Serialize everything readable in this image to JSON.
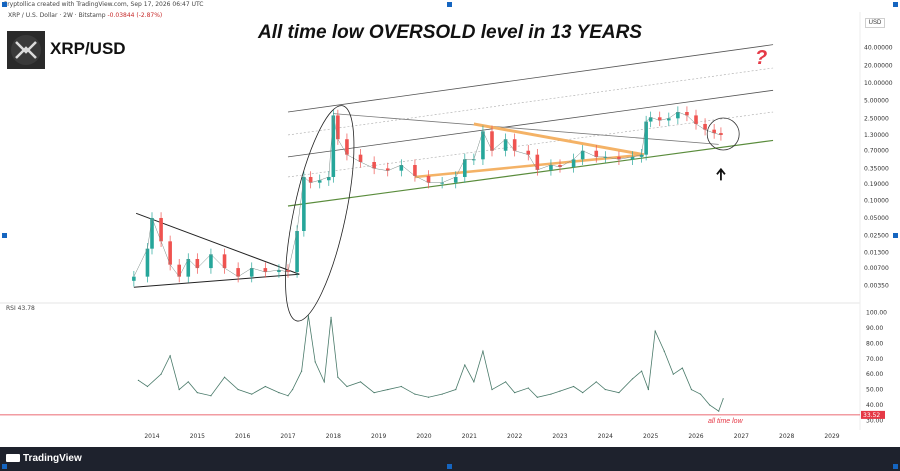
{
  "header_text": "Cryptollica created with TradingView.com, Sep 17, 2026 06:47 UTC",
  "legend": {
    "symbol": "XRP / U.S. Dollar · 2W · Bitstamp",
    "change": "-0.03844 (-2.87%)"
  },
  "pair_label": "XRP/USD",
  "headline": "All time low OVERSOLD level in 13 YEARS",
  "question_mark": "?",
  "currency": "USD",
  "footer_brand": "TradingView",
  "colors": {
    "candle_up": "#26a69a",
    "candle_down": "#ef5350",
    "trend_orange": "#f4b266",
    "support_green": "#5a8c3c",
    "rsi_line": "#4a7a6a",
    "oversold_line": "#e53946",
    "annotation_red": "#e53946",
    "background": "#ffffff",
    "frame": "#1e222d"
  },
  "chart_data": [
    {
      "type": "candlestick",
      "title": "All time low OVERSOLD level in 13 YEARS",
      "y_scale": "log",
      "ylim": [
        0.002,
        80
      ],
      "y_ticks": [
        "40.00000",
        "20.00000",
        "10.00000",
        "5.00000",
        "2.50000",
        "1.30000",
        "0.70000",
        "0.35000",
        "0.19000",
        "0.10000",
        "0.05000",
        "0.02500",
        "0.01300",
        "0.00700",
        "0.00350"
      ],
      "x_ticks": [
        "2014",
        "2015",
        "2016",
        "2017",
        "2018",
        "2019",
        "2020",
        "2021",
        "2022",
        "2023",
        "2024",
        "2025",
        "2026",
        "2027",
        "2028",
        "2029"
      ],
      "price_path": [
        {
          "x": 2013.6,
          "y": 0.005
        },
        {
          "x": 2013.9,
          "y": 0.015
        },
        {
          "x": 2014.0,
          "y": 0.05
        },
        {
          "x": 2014.2,
          "y": 0.02
        },
        {
          "x": 2014.4,
          "y": 0.008
        },
        {
          "x": 2014.6,
          "y": 0.005
        },
        {
          "x": 2014.8,
          "y": 0.01
        },
        {
          "x": 2015.0,
          "y": 0.007
        },
        {
          "x": 2015.3,
          "y": 0.012
        },
        {
          "x": 2015.6,
          "y": 0.007
        },
        {
          "x": 2015.9,
          "y": 0.005
        },
        {
          "x": 2016.2,
          "y": 0.007
        },
        {
          "x": 2016.5,
          "y": 0.006
        },
        {
          "x": 2016.8,
          "y": 0.0065
        },
        {
          "x": 2017.0,
          "y": 0.006
        },
        {
          "x": 2017.2,
          "y": 0.03
        },
        {
          "x": 2017.35,
          "y": 0.25
        },
        {
          "x": 2017.5,
          "y": 0.2
        },
        {
          "x": 2017.7,
          "y": 0.22
        },
        {
          "x": 2017.9,
          "y": 0.25
        },
        {
          "x": 2018.0,
          "y": 2.8
        },
        {
          "x": 2018.1,
          "y": 1.1
        },
        {
          "x": 2018.3,
          "y": 0.6
        },
        {
          "x": 2018.6,
          "y": 0.45
        },
        {
          "x": 2018.9,
          "y": 0.35
        },
        {
          "x": 2019.2,
          "y": 0.32
        },
        {
          "x": 2019.5,
          "y": 0.4
        },
        {
          "x": 2019.8,
          "y": 0.26
        },
        {
          "x": 2020.1,
          "y": 0.2
        },
        {
          "x": 2020.4,
          "y": 0.2
        },
        {
          "x": 2020.7,
          "y": 0.25
        },
        {
          "x": 2020.9,
          "y": 0.5
        },
        {
          "x": 2021.1,
          "y": 0.5
        },
        {
          "x": 2021.3,
          "y": 1.5
        },
        {
          "x": 2021.5,
          "y": 0.7
        },
        {
          "x": 2021.8,
          "y": 1.1
        },
        {
          "x": 2022.0,
          "y": 0.7
        },
        {
          "x": 2022.3,
          "y": 0.6
        },
        {
          "x": 2022.5,
          "y": 0.33
        },
        {
          "x": 2022.8,
          "y": 0.4
        },
        {
          "x": 2023.0,
          "y": 0.37
        },
        {
          "x": 2023.3,
          "y": 0.5
        },
        {
          "x": 2023.5,
          "y": 0.7
        },
        {
          "x": 2023.8,
          "y": 0.55
        },
        {
          "x": 2024.0,
          "y": 0.55
        },
        {
          "x": 2024.3,
          "y": 0.5
        },
        {
          "x": 2024.6,
          "y": 0.55
        },
        {
          "x": 2024.8,
          "y": 0.6
        },
        {
          "x": 2024.9,
          "y": 2.2
        },
        {
          "x": 2025.0,
          "y": 2.6
        },
        {
          "x": 2025.2,
          "y": 2.3
        },
        {
          "x": 2025.4,
          "y": 2.5
        },
        {
          "x": 2025.6,
          "y": 3.2
        },
        {
          "x": 2025.8,
          "y": 2.8
        },
        {
          "x": 2026.0,
          "y": 2.0
        },
        {
          "x": 2026.2,
          "y": 1.6
        },
        {
          "x": 2026.4,
          "y": 1.4
        },
        {
          "x": 2026.55,
          "y": 1.3
        }
      ]
    },
    {
      "type": "line",
      "name": "RSI",
      "value_label": "RSI 43.78",
      "ylim": [
        25,
        105
      ],
      "y_ticks": [
        "100.00",
        "90.00",
        "80.00",
        "70.00",
        "60.00",
        "50.00",
        "40.00",
        "30.00"
      ],
      "reference_line": {
        "value": 33.52,
        "label": "33.52"
      },
      "annotation": "all time low",
      "x": [
        2013.7,
        2013.9,
        2014.2,
        2014.4,
        2014.6,
        2014.8,
        2015.0,
        2015.3,
        2015.6,
        2015.9,
        2016.2,
        2016.5,
        2016.8,
        2017.0,
        2017.1,
        2017.3,
        2017.45,
        2017.6,
        2017.8,
        2017.95,
        2018.1,
        2018.3,
        2018.6,
        2018.9,
        2019.2,
        2019.5,
        2019.8,
        2020.1,
        2020.4,
        2020.7,
        2020.9,
        2021.1,
        2021.3,
        2021.5,
        2021.8,
        2022.0,
        2022.3,
        2022.5,
        2022.8,
        2023.0,
        2023.3,
        2023.5,
        2023.8,
        2024.0,
        2024.3,
        2024.6,
        2024.8,
        2024.95,
        2025.1,
        2025.3,
        2025.5,
        2025.7,
        2025.9,
        2026.1,
        2026.3,
        2026.5,
        2026.6
      ],
      "values": [
        56,
        52,
        60,
        72,
        50,
        55,
        48,
        46,
        58,
        50,
        47,
        52,
        48,
        46,
        50,
        62,
        98,
        68,
        55,
        97,
        58,
        52,
        55,
        48,
        50,
        52,
        47,
        45,
        47,
        50,
        66,
        55,
        75,
        50,
        55,
        48,
        51,
        45,
        47,
        49,
        52,
        48,
        55,
        50,
        48,
        57,
        62,
        50,
        88,
        75,
        60,
        64,
        50,
        47,
        40,
        36,
        44
      ]
    }
  ]
}
